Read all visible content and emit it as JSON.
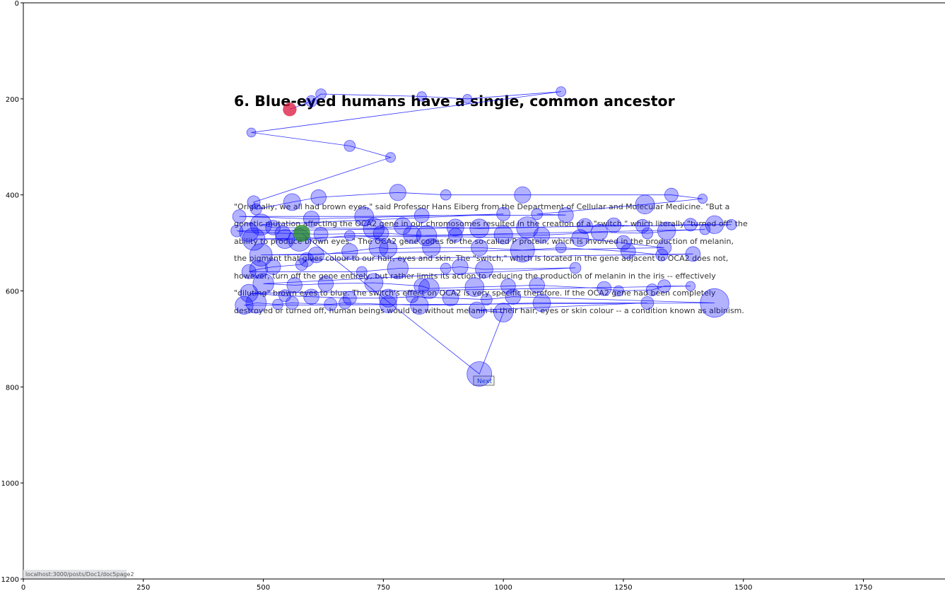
{
  "page": {
    "heading": "6. Blue-eyed humans have a single, common ancestor",
    "paragraph_lines": [
      "\"Originally, we all had brown eyes,\" said Professor Hans Eiberg from the Department of Cellular and Molecular Medicine. \"But a",
      "genetic mutation affecting the OCA2 gene in our chromosomes resulted in the creation of a \"switch,\" which literally \"turned off\" the",
      "ability to produce brown eyes.\" The OCA2 gene codes for the so-called P protein, which is involved in the production of melanin,",
      "the pigment that gives colour to our hair, eyes and skin. The \"switch,\" which is located in the gene adjacent to OCA2 does not,",
      "however, turn off the gene entirely, but rather limits its action to reducing the production of melanin in the iris -- effectively",
      "\"diluting\" brown eyes to blue. The switch's effect on OCA2 is very specific therefore. If the OCA2 gene had been completely",
      "destroyed or turned off, human beings would be without melanin in their hair, eyes or skin colour -- a condition known as albinism."
    ],
    "next_button": "Next",
    "status_url": "localhost:3000/posts/Doc1/doc5page2"
  },
  "chart_data": {
    "type": "scatter",
    "title": "",
    "xlabel": "",
    "ylabel": "",
    "xlim": [
      0,
      1920
    ],
    "ylim": [
      1200,
      0
    ],
    "y_inverted": true,
    "x_ticks": [
      0,
      250,
      500,
      750,
      1000,
      1250,
      1500,
      1750
    ],
    "y_ticks": [
      0,
      200,
      400,
      600,
      800,
      1000,
      1200
    ],
    "grid": false,
    "connected_by_line": true,
    "colors": {
      "fixation": "#0000ff",
      "line": "#0000ff",
      "first_fixation": "#dc143c",
      "last_fixation": "#228b22"
    },
    "fixations": [
      [
        555,
        222,
        95
      ],
      [
        600,
        205,
        70
      ],
      [
        620,
        190,
        60
      ],
      [
        830,
        195,
        50
      ],
      [
        925,
        200,
        45
      ],
      [
        1120,
        185,
        55
      ],
      [
        475,
        270,
        45
      ],
      [
        680,
        298,
        70
      ],
      [
        765,
        322,
        55
      ],
      [
        480,
        415,
        90
      ],
      [
        485,
        430,
        70
      ],
      [
        560,
        415,
        160
      ],
      [
        615,
        405,
        130
      ],
      [
        780,
        395,
        150
      ],
      [
        880,
        400,
        60
      ],
      [
        1040,
        400,
        150
      ],
      [
        1350,
        400,
        100
      ],
      [
        1415,
        408,
        50
      ],
      [
        1295,
        420,
        200
      ],
      [
        1070,
        440,
        70
      ],
      [
        1130,
        442,
        130
      ],
      [
        830,
        443,
        120
      ],
      [
        710,
        445,
        200
      ],
      [
        450,
        445,
        100
      ],
      [
        600,
        450,
        140
      ],
      [
        1000,
        440,
        100
      ],
      [
        495,
        462,
        250
      ],
      [
        520,
        468,
        120
      ],
      [
        730,
        470,
        240
      ],
      [
        790,
        465,
        160
      ],
      [
        900,
        468,
        160
      ],
      [
        950,
        470,
        200
      ],
      [
        1050,
        468,
        260
      ],
      [
        1170,
        465,
        130
      ],
      [
        1230,
        463,
        120
      ],
      [
        1290,
        465,
        100
      ],
      [
        1390,
        462,
        90
      ],
      [
        1440,
        462,
        180
      ],
      [
        1475,
        462,
        60
      ],
      [
        445,
        475,
        80
      ],
      [
        470,
        478,
        200
      ],
      [
        540,
        480,
        130
      ],
      [
        620,
        482,
        110
      ],
      [
        745,
        480,
        130
      ],
      [
        810,
        483,
        170
      ],
      [
        840,
        485,
        230
      ],
      [
        900,
        484,
        110
      ],
      [
        1000,
        483,
        190
      ],
      [
        1080,
        484,
        140
      ],
      [
        1200,
        478,
        150
      ],
      [
        1300,
        480,
        70
      ],
      [
        1340,
        475,
        180
      ],
      [
        1420,
        472,
        60
      ],
      [
        480,
        492,
        280
      ],
      [
        545,
        492,
        200
      ],
      [
        575,
        494,
        280
      ],
      [
        680,
        485,
        60
      ],
      [
        1160,
        490,
        160
      ],
      [
        1250,
        500,
        120
      ],
      [
        1335,
        510,
        110
      ],
      [
        495,
        525,
        280
      ],
      [
        610,
        525,
        140
      ],
      [
        680,
        518,
        140
      ],
      [
        740,
        510,
        200
      ],
      [
        760,
        512,
        170
      ],
      [
        850,
        510,
        180
      ],
      [
        950,
        510,
        150
      ],
      [
        1040,
        515,
        320
      ],
      [
        1120,
        510,
        60
      ],
      [
        1260,
        518,
        120
      ],
      [
        1330,
        525,
        80
      ],
      [
        1395,
        523,
        120
      ],
      [
        590,
        535,
        110
      ],
      [
        580,
        545,
        80
      ],
      [
        520,
        550,
        130
      ],
      [
        490,
        555,
        180
      ],
      [
        470,
        560,
        110
      ],
      [
        705,
        560,
        60
      ],
      [
        780,
        553,
        240
      ],
      [
        880,
        553,
        60
      ],
      [
        910,
        550,
        140
      ],
      [
        960,
        555,
        170
      ],
      [
        1150,
        552,
        70
      ],
      [
        500,
        585,
        240
      ],
      [
        565,
        588,
        130
      ],
      [
        630,
        585,
        130
      ],
      [
        730,
        583,
        190
      ],
      [
        830,
        590,
        130
      ],
      [
        845,
        595,
        230
      ],
      [
        940,
        592,
        200
      ],
      [
        1010,
        590,
        120
      ],
      [
        1070,
        588,
        130
      ],
      [
        1210,
        595,
        110
      ],
      [
        1240,
        600,
        60
      ],
      [
        1310,
        598,
        80
      ],
      [
        1335,
        590,
        90
      ],
      [
        1390,
        590,
        50
      ],
      [
        470,
        605,
        180
      ],
      [
        545,
        610,
        80
      ],
      [
        600,
        612,
        130
      ],
      [
        680,
        615,
        100
      ],
      [
        760,
        615,
        180
      ],
      [
        810,
        612,
        80
      ],
      [
        890,
        615,
        140
      ],
      [
        965,
        618,
        70
      ],
      [
        1020,
        612,
        130
      ],
      [
        1440,
        625,
        450
      ],
      [
        460,
        630,
        180
      ],
      [
        485,
        625,
        230
      ],
      [
        530,
        628,
        60
      ],
      [
        560,
        625,
        90
      ],
      [
        640,
        628,
        90
      ],
      [
        670,
        625,
        80
      ],
      [
        760,
        628,
        160
      ],
      [
        825,
        630,
        180
      ],
      [
        1080,
        625,
        170
      ],
      [
        1300,
        625,
        90
      ],
      [
        945,
        640,
        150
      ],
      [
        1000,
        645,
        200
      ],
      [
        950,
        773,
        340
      ],
      [
        580,
        480,
        150
      ]
    ]
  }
}
